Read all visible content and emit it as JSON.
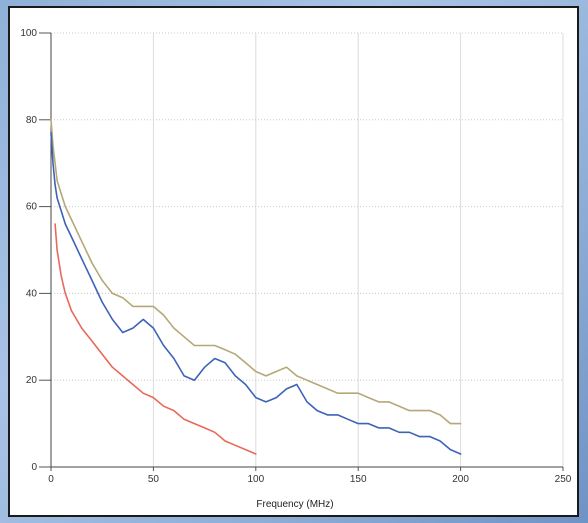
{
  "chart_data": {
    "type": "line",
    "title": "",
    "xlabel": "Frequency (MHz)",
    "ylabel": "",
    "xlim": [
      0,
      250
    ],
    "ylim": [
      0,
      100
    ],
    "x_ticks": [
      0,
      50,
      100,
      150,
      200,
      250
    ],
    "y_ticks": [
      0,
      20,
      40,
      60,
      80,
      100
    ],
    "grid": true,
    "legend": "none",
    "series": [
      {
        "color": "#b5a878",
        "x": [
          0,
          1,
          2,
          3,
          5,
          7,
          10,
          15,
          20,
          25,
          30,
          35,
          40,
          45,
          50,
          55,
          60,
          65,
          70,
          75,
          80,
          85,
          90,
          95,
          100,
          105,
          110,
          115,
          120,
          125,
          130,
          135,
          140,
          145,
          150,
          155,
          160,
          165,
          170,
          175,
          180,
          185,
          190,
          195,
          200
        ],
        "y": [
          80,
          74,
          70,
          66,
          63,
          60,
          57,
          52,
          47,
          43,
          40,
          39,
          37,
          37,
          37,
          35,
          32,
          30,
          28,
          28,
          28,
          27,
          26,
          24,
          22,
          21,
          22,
          23,
          21,
          20,
          19,
          18,
          17,
          17,
          17,
          16,
          15,
          15,
          14,
          13,
          13,
          13,
          12,
          10,
          10
        ]
      },
      {
        "color": "#3d63b8",
        "x": [
          0,
          1,
          2,
          3,
          5,
          7,
          10,
          15,
          20,
          25,
          30,
          35,
          40,
          45,
          50,
          55,
          60,
          65,
          70,
          75,
          80,
          85,
          90,
          95,
          100,
          105,
          110,
          115,
          120,
          125,
          130,
          135,
          140,
          145,
          150,
          155,
          160,
          165,
          170,
          175,
          180,
          185,
          190,
          195,
          200
        ],
        "y": [
          77,
          70,
          65,
          62,
          59,
          56,
          53,
          48,
          43,
          38,
          34,
          31,
          32,
          34,
          32,
          28,
          25,
          21,
          20,
          23,
          25,
          24,
          21,
          19,
          16,
          15,
          16,
          18,
          19,
          15,
          13,
          12,
          12,
          11,
          10,
          10,
          9,
          9,
          8,
          8,
          7,
          7,
          6,
          4,
          3
        ]
      },
      {
        "color": "#e8695a",
        "x": [
          2,
          3,
          5,
          7,
          10,
          15,
          20,
          25,
          30,
          35,
          40,
          45,
          50,
          55,
          60,
          65,
          70,
          75,
          80,
          85,
          90,
          95,
          100
        ],
        "y": [
          56,
          50,
          44,
          40,
          36,
          32,
          29,
          26,
          23,
          21,
          19,
          17,
          16,
          14,
          13,
          11,
          10,
          9,
          8,
          6,
          5,
          4,
          3
        ]
      }
    ]
  }
}
